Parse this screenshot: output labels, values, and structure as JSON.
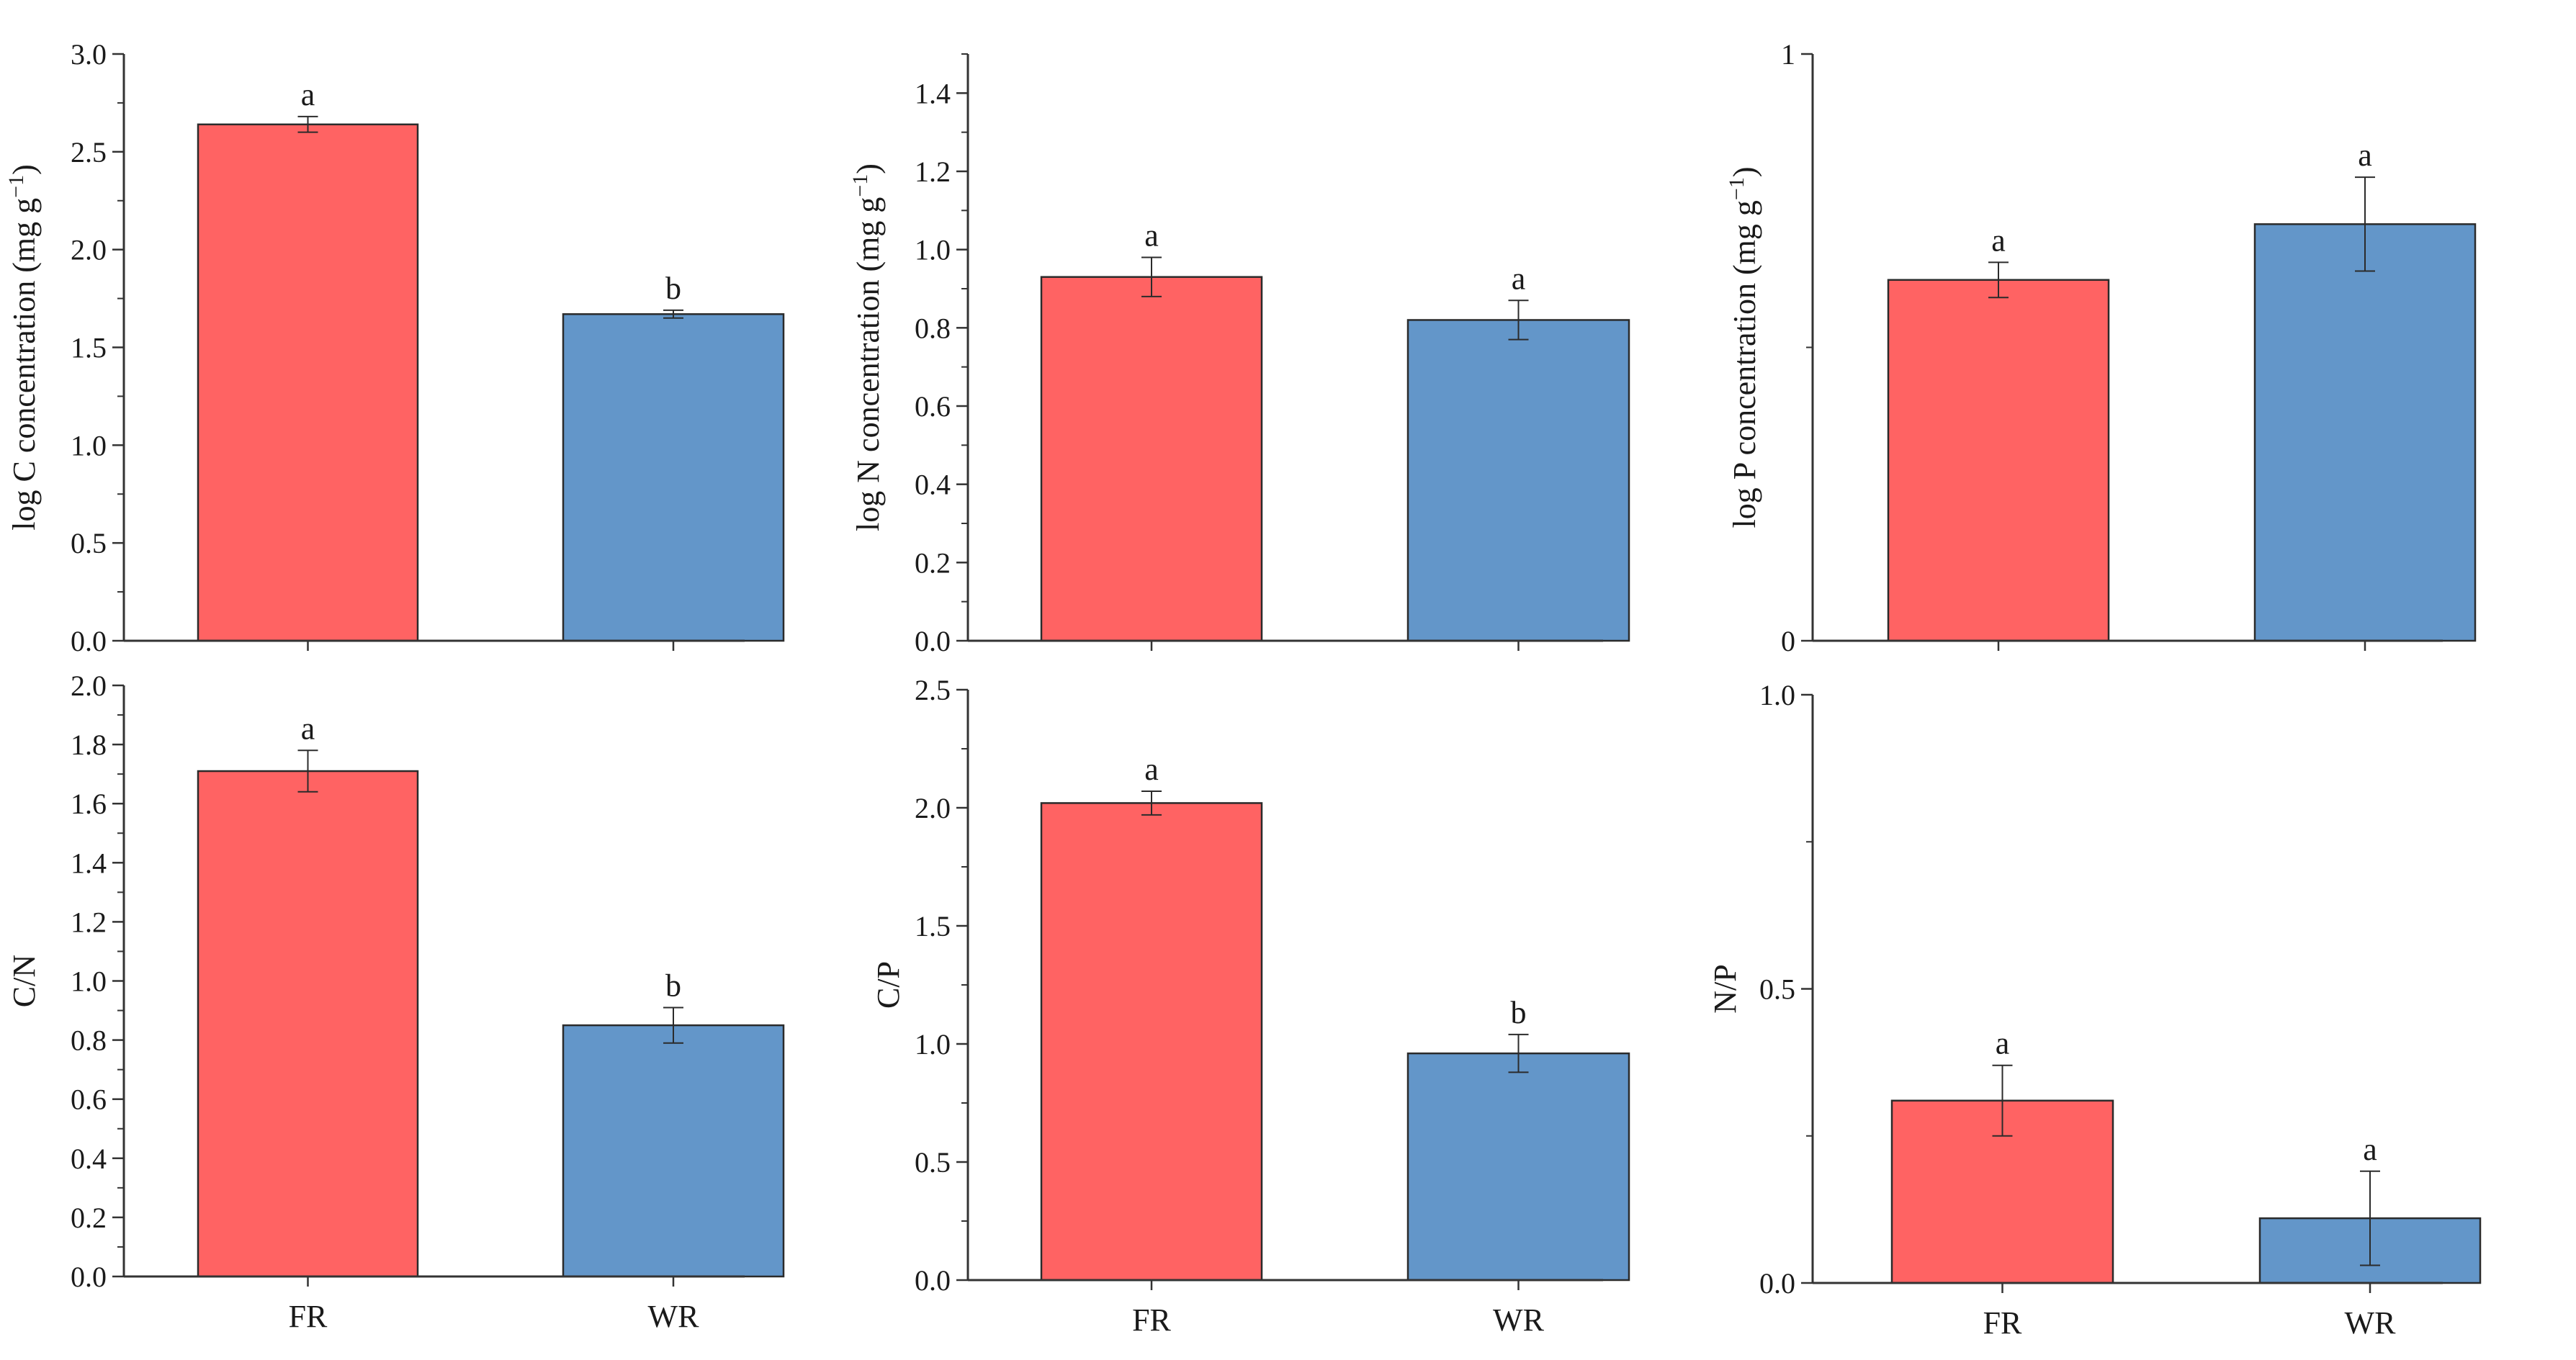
{
  "colors": {
    "FR": "#ff6363",
    "WR": "#6396c9",
    "axis": "#333333"
  },
  "chart_data": [
    {
      "type": "bar",
      "ylabel_main": "log C concentration (mg g",
      "ylabel_sup": "−1",
      "ylabel_end": ")",
      "ylim": [
        0,
        3.0
      ],
      "yticks": [
        "0.0",
        "0.5",
        "1.0",
        "1.5",
        "2.0",
        "2.5",
        "3.0"
      ],
      "ytick_values": [
        0,
        0.5,
        1.0,
        1.5,
        2.0,
        2.5,
        3.0
      ],
      "minor_step": 0.25,
      "categories": [
        "FR",
        "WR"
      ],
      "show_categories": false,
      "values": [
        2.64,
        1.67
      ],
      "errors": [
        0.04,
        0.02
      ],
      "letters": [
        "a",
        "b"
      ]
    },
    {
      "type": "bar",
      "ylabel_main": "log N concentration (mg g",
      "ylabel_sup": "−1",
      "ylabel_end": ")",
      "ylim": [
        0,
        1.5
      ],
      "yticks": [
        "0.0",
        "0.2",
        "0.4",
        "0.6",
        "0.8",
        "1.0",
        "1.2",
        "1.4"
      ],
      "ytick_values": [
        0,
        0.2,
        0.4,
        0.6,
        0.8,
        1.0,
        1.2,
        1.4
      ],
      "minor_step": 0.1,
      "categories": [
        "FR",
        "WR"
      ],
      "show_categories": false,
      "values": [
        0.93,
        0.82
      ],
      "errors": [
        0.05,
        0.05
      ],
      "letters": [
        "a",
        "a"
      ]
    },
    {
      "type": "bar",
      "ylabel_main": "log P concentration (mg g",
      "ylabel_sup": "−1",
      "ylabel_end": ")",
      "ylim": [
        0,
        1
      ],
      "yticks": [
        "0",
        "1"
      ],
      "ytick_values": [
        0,
        1
      ],
      "minor_step": 0.5,
      "categories": [
        "FR",
        "WR"
      ],
      "show_categories": false,
      "values": [
        0.615,
        0.71
      ],
      "errors": [
        0.03,
        0.08
      ],
      "letters": [
        "a",
        "a"
      ]
    },
    {
      "type": "bar",
      "ylabel_main": "C/N",
      "ylabel_sup": "",
      "ylabel_end": "",
      "ylim": [
        0,
        2.0
      ],
      "yticks": [
        "0.0",
        "0.2",
        "0.4",
        "0.6",
        "0.8",
        "1.0",
        "1.2",
        "1.4",
        "1.6",
        "1.8",
        "2.0"
      ],
      "ytick_values": [
        0,
        0.2,
        0.4,
        0.6,
        0.8,
        1.0,
        1.2,
        1.4,
        1.6,
        1.8,
        2.0
      ],
      "minor_step": 0.1,
      "categories": [
        "FR",
        "WR"
      ],
      "show_categories": true,
      "values": [
        1.71,
        0.85
      ],
      "errors": [
        0.07,
        0.06
      ],
      "letters": [
        "a",
        "b"
      ]
    },
    {
      "type": "bar",
      "ylabel_main": "C/P",
      "ylabel_sup": "",
      "ylabel_end": "",
      "ylim": [
        0,
        2.5
      ],
      "yticks": [
        "0.0",
        "0.5",
        "1.0",
        "1.5",
        "2.0",
        "2.5"
      ],
      "ytick_values": [
        0,
        0.5,
        1.0,
        1.5,
        2.0,
        2.5
      ],
      "minor_step": 0.25,
      "categories": [
        "FR",
        "WR"
      ],
      "show_categories": true,
      "values": [
        2.02,
        0.96
      ],
      "errors": [
        0.05,
        0.08
      ],
      "letters": [
        "a",
        "b"
      ]
    },
    {
      "type": "bar",
      "ylabel_main": "N/P",
      "ylabel_sup": "",
      "ylabel_end": "",
      "ylim": [
        0,
        1.0
      ],
      "yticks": [
        "0.0",
        "0.5",
        "1.0"
      ],
      "ytick_values": [
        0,
        0.5,
        1.0
      ],
      "minor_step": 0.25,
      "categories": [
        "FR",
        "WR"
      ],
      "show_categories": true,
      "values": [
        0.31,
        0.11
      ],
      "errors": [
        0.06,
        0.08
      ],
      "letters": [
        "a",
        "a"
      ]
    }
  ]
}
